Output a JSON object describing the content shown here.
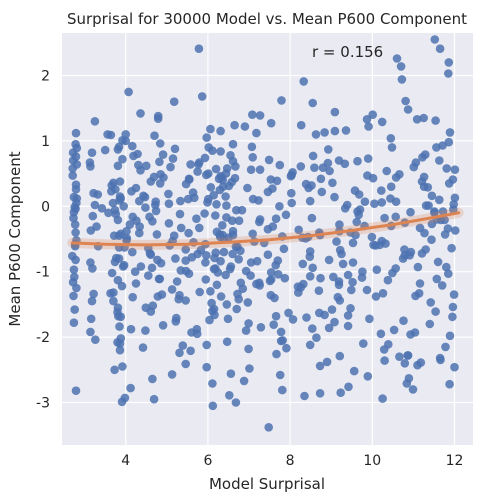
{
  "chart_data": {
    "type": "scatter",
    "title": "Surprisal for 30000 Model vs. Mean P600 Component",
    "xlabel": "Model Surprisal",
    "ylabel": "Mean P600 Component",
    "annotation": "r = 0.156",
    "xlim": [
      2.45,
      12.45
    ],
    "ylim": [
      -3.65,
      2.65
    ],
    "xticks": [
      4,
      6,
      8,
      10,
      12
    ],
    "yticks": [
      -3,
      -2,
      -1,
      0,
      1,
      2
    ],
    "grid": true,
    "point_color": "#4c72b0",
    "fit_color": "#dd8452",
    "fit_line": {
      "x": [
        2.7,
        3.5,
        4.5,
        5.5,
        6.5,
        7.5,
        8.5,
        9.5,
        10.5,
        11.5,
        12.1
      ],
      "y": [
        -0.56,
        -0.58,
        -0.59,
        -0.58,
        -0.55,
        -0.51,
        -0.45,
        -0.37,
        -0.28,
        -0.17,
        -0.1
      ]
    },
    "points": {
      "x": [
        5.78,
        11.52,
        11.65,
        11.86,
        11.85,
        10.6,
        10.7,
        8.33,
        10.72,
        8.55,
        10.81,
        4.07,
        5.86,
        5.18,
        4.36,
        3.25,
        4.79,
        4.79,
        4.0,
        6.65,
        6.06,
        7.08,
        7.54,
        5.97,
        6.9,
        7.18,
        2.78,
        2.72,
        4.84,
        3.64,
        3.84,
        3.92,
        3.56,
        10.24,
        10.01,
        9.87,
        10.87,
        11.25,
        11.09,
        11.54,
        8.27,
        8.84,
        9.09,
        9.36,
        9.91,
        10.45,
        7.79,
        9.09,
        7.27,
        2.72,
        3.14,
        2.81,
        3.18,
        3.81,
        4.19,
        4.82,
        4.31,
        4.5,
        5.15,
        5.79,
        7.09,
        9.19,
        4.0,
        4.29,
        6.31,
        6.02,
        6.61,
        4.61,
        5.54,
        5.75,
        6.01,
        5.96,
        6.47,
        6.27,
        6.66,
        7.27,
        7.53,
        8.06,
        8.26,
        8.59,
        8.96,
        9.64,
        10.58,
        11.29,
        11.06,
        12.01,
        9.58,
        8.45,
        4.14,
        3.86,
        3.22,
        3.75,
        4.47,
        5.52,
        6.37,
        6.96,
        7.46,
        6.01,
        11.56,
        11.86,
        3.42,
        2.81,
        3.69,
        3.74,
        4.33,
        2.76,
        4.72,
        3.58,
        9.82,
        9.7,
        11.63,
        11.37,
        11.51,
        2.77,
        3.15,
        3.2,
        4.26,
        4.34,
        4.58,
        5.05,
        5.79,
        6.59,
        6.61,
        5.32,
        6.18,
        7.25,
        7.58,
        7.66,
        8.21,
        9.2,
        9.67,
        10.3,
        10.46,
        10.93,
        10.79,
        11.16,
        11.57,
        11.84,
        11.72,
        11.67,
        12.02,
        3.72,
        4.02,
        4.33,
        3.33,
        6.5,
        5.94,
        6.39,
        5.83,
        5.14,
        6.72,
        6.29,
        5.96,
        5.21,
        5.18,
        3.84,
        9.13,
        8.44,
        10.78,
        8.38,
        9.53,
        10.32,
        8.73,
        11.21,
        10.18,
        7.7,
        3.14,
        3.96,
        4.64,
        4.37,
        4.77,
        5.47,
        6.31,
        6.54,
        7.05,
        6.56,
        6.16,
        9.29,
        11.8,
        5.75,
        6.24,
        9.05,
        9.19,
        9.41,
        7.26,
        7.54,
        7.25,
        8.26,
        7.18,
        7.87,
        9.49,
        9.19,
        3.22,
        3.7,
        4.78,
        4.66,
        3.7,
        3.81,
        5.46,
        4.61,
        5.31,
        6.09,
        6.06,
        6.15,
        6.75,
        6.46,
        7.62,
        8.71,
        8.7,
        9.02,
        10.09,
        11.42,
        11.14,
        11.96,
        2.74,
        3.16,
        3.85,
        3.88,
        4.48,
        5.22,
        4.91,
        5.23,
        5.6,
        6.16,
        5.73,
        6.04,
        6.99,
        7.29,
        7.66,
        7.78,
        8.07,
        7.6,
        8.4,
        8.95,
        9.08,
        9.41,
        10.21,
        9.41,
        9.93,
        10.53,
        10.76,
        10.93,
        11.4,
        11.95,
        3.26,
        3.86,
        3.86,
        4.42,
        3.88,
        5.31,
        5.39,
        5.58,
        6.47,
        6.99,
        7.67,
        7.82,
        7.91,
        8.64,
        8.49,
        9.21,
        11.89,
        11.66,
        10.86,
        9.78,
        10.29,
        10.79,
        11.78,
        3.73,
        3.92,
        4.65,
        5.13,
        5.97,
        5.46,
        6.11,
        6.56,
        7.01,
        6.88,
        7.76,
        8.73,
        8.9,
        9.89,
        9.56,
        10.3,
        10.66,
        10.87,
        11.1,
        11.65,
        11.18,
        12.0,
        2.79,
        3.91,
        3.98,
        4.12,
        4.69,
        6.12,
        6.52,
        6.68,
        7.48,
        7.81,
        8.35,
        8.73,
        9.23,
        9.42,
        10.25,
        10.84,
        10.99,
        10.89,
        11.88,
        2.79,
        3.7,
        4.84,
        4.69,
        3.86,
        4.85,
        5.55,
        5.47,
        6.31,
        6.36,
        6.58,
        6.34,
        6.51,
        8.04,
        7.68,
        8.75,
        8.52,
        9.03,
        9.88,
        10.02,
        10.46,
        11.21,
        11.26,
        11.87,
        11.96,
        2.77,
        3.97,
        4.16,
        4.55,
        4.59,
        5.46,
        6.19,
        6.79,
        6.68,
        7.46,
        7.85,
        8.49,
        9.25,
        9.22,
        10.08,
        10.79,
        10.94,
        11.3,
        11.93,
        2.74,
        3.67,
        3.19,
        4.55,
        4.23,
        5.34,
        5.54,
        6.15,
        6.43,
        6.93,
        7.54,
        7.71,
        8.55,
        8.49,
        9.76,
        10.11,
        10.49,
        10.57,
        11.85,
        2.8,
        3.25,
        3.85,
        3.95,
        4.73,
        5.05,
        5.33,
        6.21,
        5.99,
        6.45,
        7.23,
        7.74,
        8.04,
        8.49,
        9.39,
        10.23,
        10.05,
        10.58,
        11.31,
        11.98,
        2.78,
        3.84,
        4.02,
        4.76,
        5.53,
        6.3,
        6.22,
        6.61,
        7.09,
        7.81,
        8.71,
        9.2,
        9.59,
        9.99,
        11.27,
        11.77,
        2.72,
        3.81,
        4.25,
        4.81,
        5.25,
        5.95,
        6.8,
        7.51,
        8.32,
        8.74,
        9.52,
        10.38,
        11.16,
        11.57,
        2.71,
        3.81,
        4.36,
        5.09,
        5.77,
        6.2,
        6.67,
        7.05,
        7.75,
        8.8,
        9.33,
        10.35,
        11.01,
        11.81,
        2.74,
        3.32,
        3.88,
        4.43,
        5.04,
        5.67,
        6.14,
        6.43,
        7.1,
        8.03,
        9.08,
        9.68,
        10.44,
        11.45,
        12.01,
        2.78,
        3.74,
        3.84,
        4.86,
        5.46,
        5.94,
        6.75,
        7.2,
        8.31,
        8.95,
        9.53,
        10.75,
        11.6,
        2.73,
        3.63,
        4.17,
        4.88,
        5.8,
        6.32,
        6.72,
        7.53,
        8.2,
        9.16,
        10.26,
        11.05,
        11.99,
        2.73,
        3.81,
        4.17,
        4.65,
        5.72,
        6.45,
        6.76,
        7.27,
        8.53,
        9.62,
        10.57,
        11.76,
        2.79,
        3.92,
        4.91,
        5.93,
        6.55,
        7.49,
        8.56,
        9.9,
        11.22,
        2.76,
        3.8,
        4.49,
        6.11,
        6.7,
        7.96,
        9.47,
        11.54,
        2.8,
        4.03,
        5.65,
        6.39,
        7.13,
        8.3,
        10.23,
        11.44,
        2.79,
        3.65,
        4.25,
        5.64,
        6.29,
        7.57,
        8.77,
        10.22,
        11.35,
        2.8,
        3.91,
        5.13,
        6.22,
        6.85,
        8.19,
        9.87,
        11.7,
        2.74,
        3.76,
        4.74,
        5.92,
        6.69,
        7.9,
        9.64,
        11.51,
        3.14,
        4.13,
        5.74,
        6.93,
        8.54,
        11.04,
        2.81,
        3.5,
        4.16,
        5.2,
        6.11,
        7.07,
        8.93,
        10.48,
        11.71,
        3.29,
        4.1,
        5.35,
        6.35,
        7.46,
        9.81,
        11.45,
        2.7,
        3.77,
        4.61,
        5.61,
        6.6,
        8.48,
        10.91,
        3.8,
        5.97,
        7.78,
        10.39,
        2.79,
        4.7,
        6.31,
        8.63,
        11.89,
        3.18,
        5.29,
        6.97,
        9.21,
        2.71,
        4.92,
        6.44,
        8.02,
        10.66,
        3.94,
        6.18,
        7.65,
        11.11,
        2.78,
        4.48,
        6.83,
        9.34,
        11.97,
        3.82,
        6.49,
        8.84,
        2.77,
        5.07,
        7.37,
        10.03,
        3.66,
        6.07,
        8.39,
        11.26,
        2.75,
        4.83,
        7.04,
        9.75,
        3.13,
        5.58,
        6.61,
        8.92,
        11.63,
        3.88,
        6.36,
        9.47
      ],
      "y": [
        2.41,
        2.55,
        2.41,
        2.2,
        2.03,
        2.26,
        2.14,
        1.91,
        1.94,
        1.58,
        1.61,
        1.75,
        1.68,
        1.6,
        1.42,
        1.3,
        1.38,
        1.34,
        1.1,
        1.24,
        1.18,
        1.4,
        1.27,
        1.05,
        1.22,
        1.12,
        0.95,
        0.7,
        0.96,
        1.09,
        0.91,
        1.01,
        1.1,
        1.29,
        1.4,
        1.33,
        1.48,
        1.35,
        1.33,
        1.31,
        1.24,
        1.13,
        1.15,
        1.16,
        1.22,
        1.04,
        1.62,
        1.44,
        1.39,
        0.82,
        0.61,
        0.64,
        0.82,
        0.87,
        0.77,
        0.68,
        0.63,
        0.62,
        0.73,
        0.67,
        0.75,
        0.7,
        1.0,
        0.8,
        0.84,
        0.9,
        0.95,
        0.38,
        0.42,
        0.53,
        0.5,
        0.48,
        0.58,
        0.42,
        0.43,
        0.56,
        0.41,
        0.52,
        0.61,
        0.59,
        0.54,
        0.69,
        0.44,
        0.79,
        0.67,
        0.56,
        0.24,
        0.28,
        0.23,
        0.15,
        0.2,
        0.26,
        0.14,
        0.11,
        0.3,
        0.28,
        0.22,
        0.11,
        0.9,
        0.98,
        -0.03,
        0.12,
        0.05,
        -0.06,
        0.08,
        -0.01,
        0.02,
        -0.1,
        0.07,
        -0.05,
        0.1,
        0.01,
        -0.08,
        -0.28,
        -0.37,
        -0.15,
        -0.22,
        -0.31,
        -0.16,
        -0.26,
        -0.33,
        -0.22,
        -0.38,
        -0.12,
        -0.14,
        -0.24,
        -0.31,
        -0.19,
        -0.36,
        -0.28,
        -0.13,
        -0.18,
        -0.3,
        -0.09,
        -0.25,
        -0.33,
        -0.2,
        -0.34,
        -0.08,
        -0.21,
        -0.37,
        -0.45,
        -0.52,
        -0.41,
        -0.61,
        -0.48,
        -0.58,
        -0.7,
        -0.67,
        -0.53,
        -0.62,
        -0.43,
        -0.75,
        -0.8,
        -0.45,
        -0.63,
        -0.54,
        -0.47,
        -0.66,
        -0.49,
        -0.56,
        -0.57,
        -0.44,
        -0.72,
        -0.59,
        -0.83,
        -0.86,
        -0.9,
        -0.94,
        -0.92,
        -0.82,
        -0.99,
        -0.84,
        -0.96,
        -0.86,
        -0.92,
        -0.79,
        -0.88,
        -0.93,
        -0.73,
        -1.01,
        -1.08,
        -1.15,
        -1.05,
        -1.21,
        -1.12,
        -1.17,
        -1.24,
        -1.19,
        -1.1,
        -1.28,
        -1.2,
        -1.34,
        -1.45,
        -1.38,
        -1.52,
        -1.32,
        -1.55,
        -1.44,
        -1.61,
        -1.36,
        -1.48,
        -1.3,
        -1.57,
        -1.42,
        -1.5,
        -1.4,
        -1.63,
        -1.29,
        -1.58,
        -1.38,
        -1.47,
        -1.33,
        -1.54,
        -1.78,
        -1.72,
        -1.84,
        -1.69,
        -1.9,
        -1.76,
        -1.82,
        -1.71,
        -1.93,
        -1.66,
        -1.88,
        -1.74,
        -1.79,
        -1.85,
        -1.68,
        -1.92,
        -1.73,
        -1.81,
        -1.7,
        -1.86,
        -1.77,
        -1.67,
        -1.95,
        -1.83,
        -1.72,
        -1.89,
        -1.75,
        -1.96,
        -1.8,
        -1.69,
        -2.04,
        -2.1,
        -2.2,
        -2.16,
        -2.02,
        -2.24,
        -2.13,
        -2.21,
        -2.07,
        -2.18,
        -2.26,
        -2.05,
        -2.17,
        -2.01,
        -2.12,
        -2.29,
        -1.98,
        -2.35,
        -2.28,
        -2.1,
        -2.19,
        -2.4,
        -2.15,
        -2.5,
        -2.45,
        -2.64,
        -2.57,
        -2.46,
        -2.41,
        -2.71,
        -2.56,
        -2.48,
        -2.67,
        -2.58,
        -2.44,
        -2.38,
        -2.6,
        -2.52,
        -2.36,
        -2.3,
        -2.28,
        -2.43,
        -2.32,
        -2.39,
        -2.46,
        -2.82,
        -2.99,
        -2.93,
        -2.78,
        -2.95,
        -3.05,
        -2.89,
        -3.0,
        -3.38,
        -2.81,
        -2.9,
        -2.86,
        -2.85,
        -2.76,
        -2.94,
        -2.71,
        -2.8,
        -2.63,
        -2.72,
        0.33,
        0.36,
        0.35,
        0.45,
        0.38,
        0.49,
        0.41,
        0.34,
        0.46,
        0.4,
        0.37,
        0.44,
        0.31,
        0.48,
        0.39,
        0.42,
        0.32,
        0.36,
        0.47,
        0.43,
        0.3,
        0.38,
        0.45,
        0.35,
        0.41,
        -0.61,
        -0.63,
        -0.7,
        -0.64,
        -0.72,
        -0.66,
        -0.71,
        -0.68,
        -0.62,
        -0.74,
        -0.65,
        -0.69,
        -0.73,
        -0.67,
        -0.6,
        -0.75,
        -0.7,
        -0.66,
        -0.64,
        -0.97,
        -1.02,
        -0.95,
        -1.06,
        -1.0,
        -0.98,
        -1.03,
        -0.96,
        -1.05,
        -0.99,
        -1.01,
        -1.04,
        -0.94,
        -1.07,
        -1.0,
        -0.97,
        -1.02,
        -0.95,
        -1.03,
        0.05,
        0.02,
        0.09,
        0.0,
        0.07,
        0.04,
        0.08,
        0.03,
        0.06,
        0.01,
        0.09,
        0.0,
        0.05,
        0.08,
        0.02,
        0.06,
        0.04,
        0.07,
        0.01,
        0.03,
        -0.4,
        -0.45,
        -0.38,
        -0.43,
        -0.41,
        -0.47,
        -0.39,
        -0.44,
        -0.42,
        -0.46,
        -0.4,
        -0.38,
        -0.44,
        -0.47,
        -0.41,
        -0.43,
        -1.16,
        -1.13,
        -1.18,
        -1.11,
        -1.15,
        -1.12,
        -1.17,
        -1.14,
        -1.19,
        -1.1,
        -1.16,
        -1.13,
        -1.18,
        -1.11,
        0.58,
        0.62,
        0.55,
        0.6,
        0.64,
        0.57,
        0.61,
        0.56,
        0.63,
        0.59,
        0.65,
        0.54,
        0.6,
        0.58,
        0.14,
        0.18,
        0.12,
        0.16,
        0.19,
        0.13,
        0.17,
        0.15,
        0.11,
        0.2,
        0.14,
        0.18,
        0.12,
        0.16,
        0.13,
        -0.82,
        -0.85,
        -0.8,
        -0.87,
        -0.83,
        -0.86,
        -0.81,
        -0.84,
        -0.88,
        -0.82,
        -0.86,
        -0.8,
        -0.85,
        -1.37,
        -1.33,
        -1.39,
        -1.35,
        -1.31,
        -1.38,
        -1.34,
        -1.36,
        -1.32,
        -1.39,
        -1.33,
        -1.37,
        -1.35,
        -0.18,
        -0.21,
        -0.16,
        -0.23,
        -0.19,
        -0.17,
        -0.22,
        -0.2,
        -0.18,
        -0.24,
        -0.16,
        -0.21,
        0.76,
        0.72,
        0.79,
        0.74,
        0.78,
        0.71,
        0.77,
        0.73,
        0.75,
        -1.58,
        -1.62,
        -1.55,
        -1.6,
        -1.57,
        -1.63,
        -1.56,
        -1.61,
        -0.52,
        -0.49,
        -0.55,
        -0.5,
        -0.54,
        -0.48,
        -0.53,
        -0.51,
        0.26,
        0.23,
        0.28,
        0.21,
        0.25,
        0.27,
        0.22,
        0.24,
        0.29,
        -1.25,
        -1.22,
        -1.27,
        -1.2,
        -1.26,
        -1.23,
        -1.28,
        -1.21,
        -0.09,
        -0.12,
        -0.07,
        -0.11,
        -0.06,
        -0.13,
        -0.08,
        -0.1,
        -1.92,
        -1.88,
        -1.95,
        -1.9,
        -1.87,
        -1.93,
        0.89,
        0.86,
        0.92,
        0.88,
        0.85,
        0.91,
        0.87,
        0.9,
        0.93,
        -0.31,
        -0.28,
        -0.33,
        -0.29,
        -0.35,
        -0.3,
        -0.27,
        -0.76,
        -0.79,
        -0.74,
        -0.78,
        -0.73,
        -0.77,
        -0.75,
        -2.08,
        -2.12,
        -2.06,
        -2.11,
        1.12,
        1.08,
        1.15,
        1.1,
        1.13,
        -1.45,
        -1.42,
        -1.47,
        -1.44,
        0.47,
        0.44,
        0.5,
        0.46,
        0.49,
        -0.92,
        -0.95,
        -0.9,
        -0.93,
        -0.04,
        -0.02,
        -0.06,
        -0.03,
        -0.05,
        -1.68,
        -1.72,
        -1.66,
        -0.58,
        -0.6,
        -0.56,
        -0.59,
        0.32,
        0.29,
        0.34,
        0.3,
        -1.08,
        -1.11,
        -1.06,
        -1.09,
        0.67,
        0.64,
        0.69,
        0.66,
        0.7,
        -0.42,
        -0.44,
        -0.4
      ]
    }
  }
}
